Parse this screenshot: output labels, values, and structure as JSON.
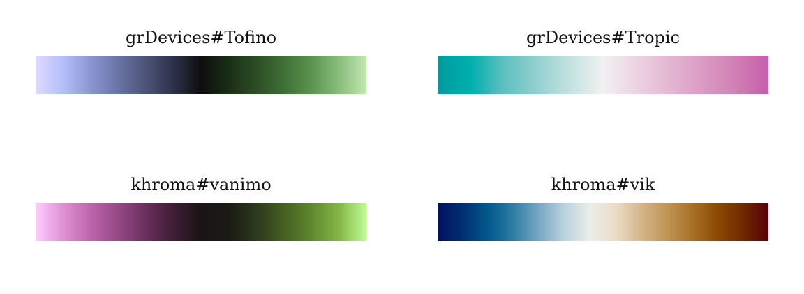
{
  "palettes": [
    {
      "title": "grDevices#Tofino",
      "colors": [
        "#DED9FF",
        "#B3BFFA",
        "#8A96D1",
        "#6A74A6",
        "#4C5478",
        "#2D3249",
        "#0E0E0E",
        "#1A2E17",
        "#2C4D26",
        "#3F6F36",
        "#5A9450",
        "#89BD7C",
        "#C1E8B0"
      ]
    },
    {
      "title": "grDevices#Tropic",
      "colors": [
        "#009B9F",
        "#00AFAE",
        "#5FBFC0",
        "#93D0CF",
        "#C4E1E0",
        "#F1F1F1",
        "#ECD4E2",
        "#E4B7D2",
        "#DB9BC3",
        "#D180B5",
        "#C75DAA"
      ]
    },
    {
      "title": "khroma#vanimo",
      "colors": [
        "#FFCCFF",
        "#DE91D3",
        "#BE64AC",
        "#944A85",
        "#6A2F5D",
        "#3F1D35",
        "#1A1416",
        "#1A1A12",
        "#2C391E",
        "#446022",
        "#5E882E",
        "#85B546",
        "#BEFD94"
      ]
    },
    {
      "title": "khroma#vik",
      "colors": [
        "#001260",
        "#00306F",
        "#025A8D",
        "#2F7EA6",
        "#79A8C3",
        "#BAD3E0",
        "#EBEDE9",
        "#EBDCC6",
        "#D5B58B",
        "#C09557",
        "#A97125",
        "#8C4903",
        "#6E2900",
        "#590008"
      ]
    }
  ]
}
